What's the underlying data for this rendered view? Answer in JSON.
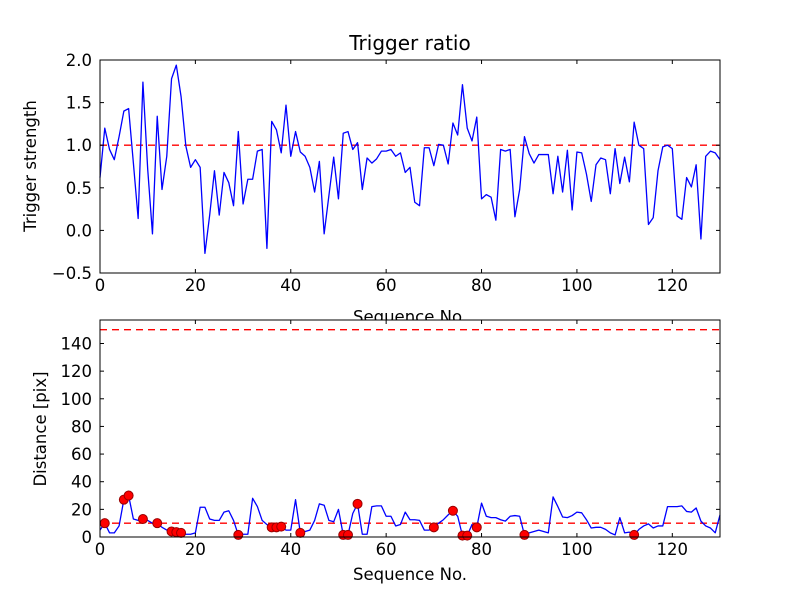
{
  "chart_data": [
    {
      "type": "line",
      "title": "Trigger ratio",
      "xlabel": "Sequence No.",
      "ylabel": "Trigger strength",
      "xlim": [
        0,
        130
      ],
      "ylim": [
        -0.5,
        2.0
      ],
      "grid": false,
      "legend": "none",
      "xticks": [
        0,
        20,
        40,
        60,
        80,
        100,
        120
      ],
      "xtick_labels": [
        "0",
        "20",
        "40",
        "60",
        "80",
        "100",
        "120"
      ],
      "yticks": [
        -0.5,
        0.0,
        0.5,
        1.0,
        1.5,
        2.0
      ],
      "ytick_labels": [
        "−0.5",
        "0.0",
        "0.5",
        "1.0",
        "1.5",
        "2.0"
      ],
      "thresholds": [
        {
          "y": 1.0,
          "style": "dashed",
          "color": "#ff0000"
        }
      ],
      "series": [
        {
          "name": "trigger_strength",
          "color": "#0000ff",
          "x_start": 0,
          "x_step": 1,
          "y": [
            0.62,
            1.2,
            0.95,
            0.83,
            1.1,
            1.4,
            1.43,
            0.79,
            0.14,
            1.74,
            0.72,
            -0.04,
            1.34,
            0.48,
            0.87,
            1.78,
            1.94,
            1.57,
            0.99,
            0.74,
            0.83,
            0.74,
            -0.27,
            0.18,
            0.7,
            0.18,
            0.68,
            0.56,
            0.29,
            1.16,
            0.31,
            0.6,
            0.6,
            0.93,
            0.95,
            -0.21,
            1.28,
            1.18,
            0.91,
            1.47,
            0.87,
            1.16,
            0.92,
            0.87,
            0.74,
            0.45,
            0.81,
            -0.04,
            0.41,
            0.86,
            0.37,
            1.14,
            1.16,
            0.95,
            1.03,
            0.48,
            0.85,
            0.79,
            0.84,
            0.93,
            0.93,
            0.95,
            0.87,
            0.91,
            0.68,
            0.74,
            0.33,
            0.29,
            0.97,
            0.97,
            0.76,
            1.01,
            1.0,
            0.78,
            1.26,
            1.12,
            1.71,
            1.2,
            1.05,
            1.33,
            0.37,
            0.42,
            0.39,
            0.12,
            0.95,
            0.93,
            0.95,
            0.16,
            0.48,
            1.1,
            0.9,
            0.79,
            0.89,
            0.89,
            0.89,
            0.43,
            0.87,
            0.45,
            0.94,
            0.24,
            0.92,
            0.91,
            0.66,
            0.34,
            0.77,
            0.85,
            0.83,
            0.43,
            0.96,
            0.55,
            0.86,
            0.57,
            1.27,
            1.0,
            0.96,
            0.07,
            0.15,
            0.7,
            0.98,
            1.0,
            0.96,
            0.17,
            0.13,
            0.62,
            0.51,
            0.77,
            -0.1,
            0.87,
            0.93,
            0.91,
            0.83
          ]
        }
      ]
    },
    {
      "type": "line",
      "title": "",
      "xlabel": "Sequence No.",
      "ylabel": "Distance [pix]",
      "xlim": [
        0,
        130
      ],
      "ylim": [
        0,
        157
      ],
      "grid": false,
      "legend": "none",
      "xticks": [
        0,
        20,
        40,
        60,
        80,
        100,
        120
      ],
      "xtick_labels": [
        "0",
        "20",
        "40",
        "60",
        "80",
        "100",
        "120"
      ],
      "yticks": [
        0,
        20,
        40,
        60,
        80,
        100,
        120,
        140
      ],
      "ytick_labels": [
        "0",
        "20",
        "40",
        "60",
        "80",
        "100",
        "120",
        "140"
      ],
      "thresholds": [
        {
          "y": 150,
          "style": "dashed",
          "color": "#ff0000"
        },
        {
          "y": 10,
          "style": "dashed",
          "color": "#ff0000"
        }
      ],
      "series": [
        {
          "name": "distance",
          "color": "#0000ff",
          "x_start": 0,
          "x_step": 1,
          "y": [
            5,
            10,
            3,
            3,
            8,
            27,
            30,
            13,
            12,
            13,
            12,
            10,
            10,
            7,
            5,
            4,
            3.5,
            3,
            2,
            2,
            3,
            21.5,
            21.5,
            13,
            12,
            12,
            18,
            19,
            12,
            1.5,
            2,
            2,
            28,
            22,
            12,
            9,
            7,
            7,
            7.5,
            5,
            5,
            27,
            3,
            4,
            5,
            12,
            24,
            23,
            12,
            11,
            20,
            1.5,
            1.5,
            17,
            24,
            2,
            2,
            22,
            22.5,
            22.5,
            15,
            15,
            8,
            9,
            18,
            12.5,
            12.5,
            12,
            5,
            5,
            7,
            10,
            12.5,
            16,
            19,
            15,
            1,
            1,
            9,
            7,
            24.5,
            15,
            14,
            14,
            12.5,
            11.5,
            15,
            15.5,
            15,
            1.5,
            3,
            4,
            5,
            4,
            3,
            29,
            22,
            14.5,
            14,
            15.5,
            18,
            17.5,
            12.5,
            6.5,
            7,
            7,
            5.5,
            3,
            1.5,
            14,
            3,
            3.5,
            1.5,
            5.5,
            8,
            9.5,
            6.5,
            8,
            8,
            22,
            22,
            22,
            22.5,
            18.5,
            18,
            21,
            11.5,
            8,
            6.5,
            3,
            16
          ]
        }
      ],
      "markers": {
        "name": "trigger_events",
        "shape": "circle",
        "color": "#ff0000",
        "edge_color": "#990000",
        "points": [
          [
            1,
            10
          ],
          [
            5,
            27
          ],
          [
            6,
            30
          ],
          [
            9,
            13
          ],
          [
            12,
            10
          ],
          [
            15,
            4
          ],
          [
            16,
            3.5
          ],
          [
            17,
            3
          ],
          [
            29,
            1.5
          ],
          [
            36,
            7
          ],
          [
            37,
            7
          ],
          [
            38,
            7.5
          ],
          [
            42,
            3
          ],
          [
            51,
            1.5
          ],
          [
            52,
            1.5
          ],
          [
            54,
            24
          ],
          [
            70,
            7
          ],
          [
            74,
            19
          ],
          [
            76,
            1
          ],
          [
            77,
            1
          ],
          [
            79,
            7
          ],
          [
            89,
            1.5
          ],
          [
            112,
            1.5
          ]
        ]
      }
    }
  ]
}
